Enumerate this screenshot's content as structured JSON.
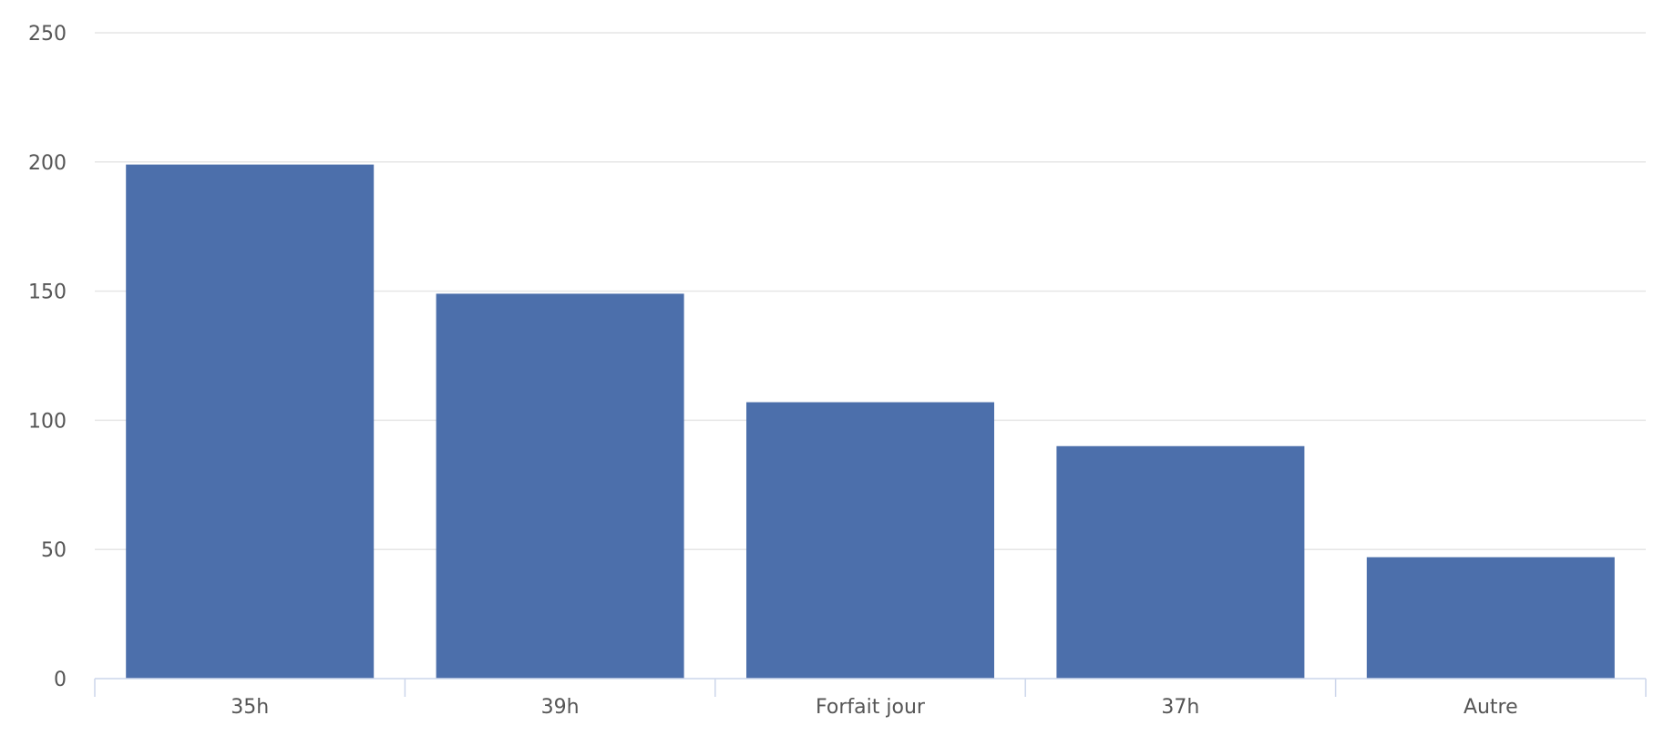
{
  "chart_data": {
    "type": "bar",
    "categories": [
      "35h",
      "39h",
      "Forfait jour",
      "37h",
      "Autre"
    ],
    "values": [
      199,
      149,
      107,
      90,
      47
    ],
    "title": "",
    "xlabel": "",
    "ylabel": "",
    "ylim": [
      0,
      250
    ],
    "yticks": [
      0,
      50,
      100,
      150,
      200,
      250
    ],
    "grid": true,
    "legend": "none",
    "bar_color": "#4c6fab"
  }
}
